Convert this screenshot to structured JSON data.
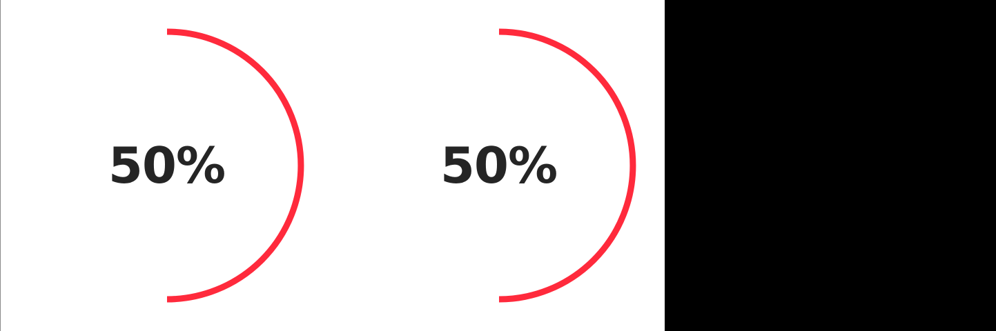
{
  "gauges": [
    {
      "value": 0.5,
      "label": "50%"
    },
    {
      "value": 0.5,
      "label": "50%"
    }
  ],
  "colors": {
    "arc": "#ff2a3c",
    "text": "#252525",
    "panel": "#000000",
    "background": "#ffffff"
  }
}
